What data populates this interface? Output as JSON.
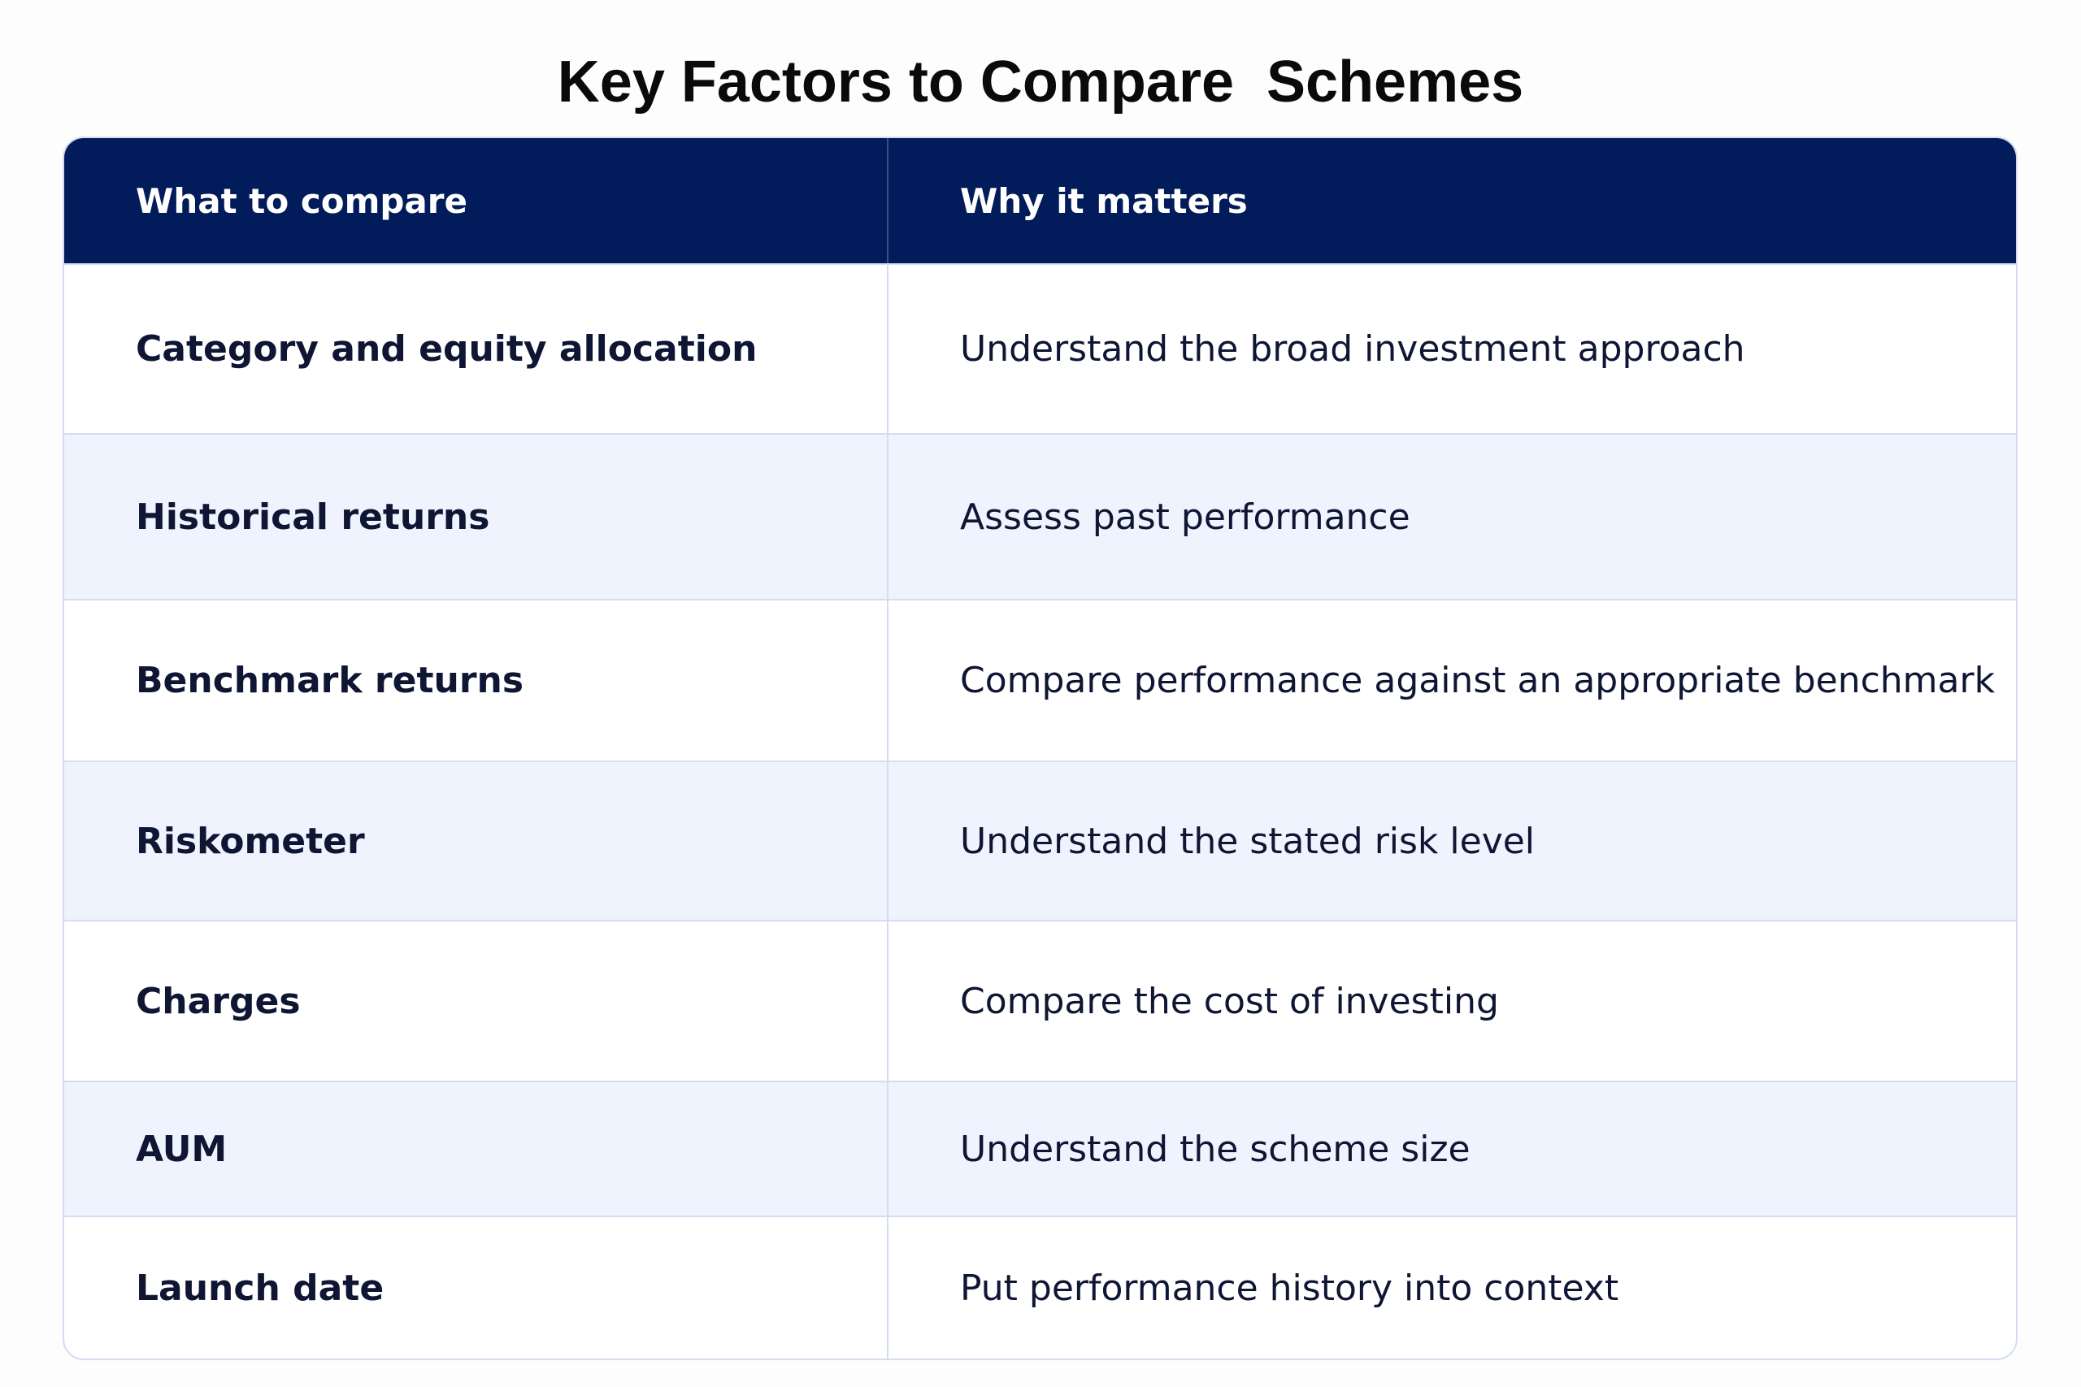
{
  "title": "Key Factors to Compare  Schemes",
  "table": {
    "header": [
      "What to compare",
      "Why it matters"
    ],
    "rows": [
      [
        "Category and equity allocation",
        "Understand the broad investment approach"
      ],
      [
        "Historical returns",
        "Assess past performance"
      ],
      [
        "Benchmark returns",
        "Compare performance against an appropriate benchmark"
      ],
      [
        "Riskometer",
        "Understand the stated risk level"
      ],
      [
        "Charges",
        "Compare the cost of investing"
      ],
      [
        "AUM",
        "Understand the scheme size"
      ],
      [
        "Launch date",
        "Put performance history into context"
      ]
    ]
  }
}
